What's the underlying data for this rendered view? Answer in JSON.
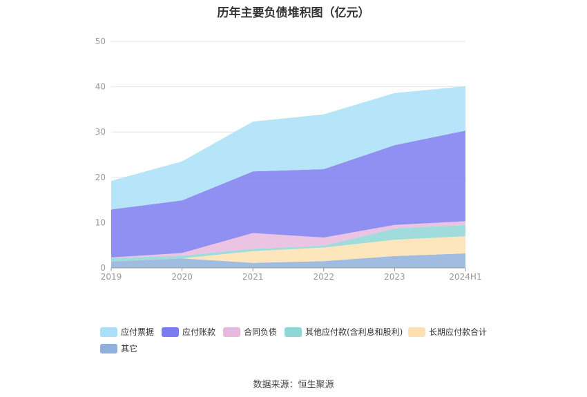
{
  "title": "历年主要负债堆积图（亿元）",
  "source": "数据来源：恒生聚源",
  "chart_data": {
    "type": "area",
    "stacked": true,
    "categories": [
      "2019",
      "2020",
      "2021",
      "2022",
      "2023",
      "2024H1"
    ],
    "ylim": [
      0,
      50
    ],
    "yticks": [
      0,
      10,
      20,
      30,
      40,
      50
    ],
    "grid": true,
    "legend_position": "bottom",
    "series": [
      {
        "name": "其它",
        "color": "#8fb0dc",
        "values": [
          1.4,
          2.1,
          1.1,
          1.5,
          2.6,
          3.2
        ]
      },
      {
        "name": "长期应付款合计",
        "color": "#fde0b0",
        "values": [
          0.0,
          0.0,
          2.6,
          3.0,
          3.6,
          3.8
        ]
      },
      {
        "name": "其他应付款(含利息和股利)",
        "color": "#8fd6d6",
        "values": [
          0.8,
          0.6,
          0.5,
          0.4,
          2.5,
          2.5
        ]
      },
      {
        "name": "合同负债",
        "color": "#e8b8de",
        "values": [
          0.1,
          0.6,
          3.5,
          1.8,
          0.8,
          0.8
        ]
      },
      {
        "name": "应付账款",
        "color": "#7b7cf0",
        "values": [
          10.6,
          11.6,
          13.6,
          15.1,
          17.6,
          20.0
        ]
      },
      {
        "name": "应付票据",
        "color": "#a9dff8",
        "values": [
          6.3,
          8.6,
          11.0,
          12.1,
          11.5,
          9.8
        ]
      }
    ],
    "legend_order": [
      "应付票据",
      "应付账款",
      "合同负债",
      "其他应付款(含利息和股利)",
      "长期应付款合计",
      "其它"
    ]
  }
}
